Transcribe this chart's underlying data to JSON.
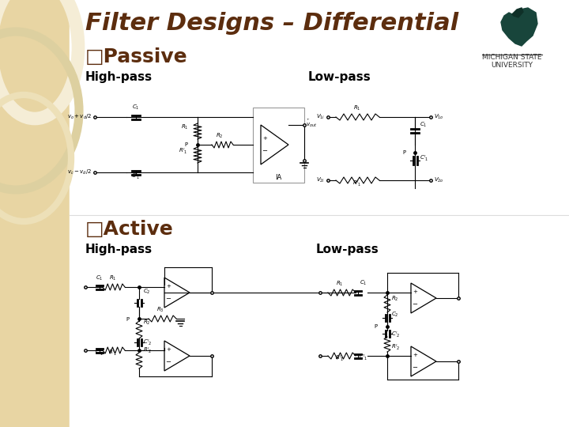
{
  "title": "Filter Designs – Differential",
  "title_color": "#5C2D0E",
  "title_fontsize": 22,
  "bg_main": "#FFFFFF",
  "sidebar_color": "#E8D5A3",
  "passive_label": "□Passive",
  "active_label": "□Active",
  "section_fontsize": 18,
  "section_color": "#5C2D0E",
  "highpass_label": "High-pass",
  "lowpass_label": "Low-pass",
  "sublabel_fontsize": 11,
  "sublabel_color": "#000000",
  "msu_text": "MICHIGAN STATE\nUNIVERSITY",
  "msu_color": "#333333",
  "helmet_color": "#18453B",
  "divider_color": "#DDDDDD"
}
